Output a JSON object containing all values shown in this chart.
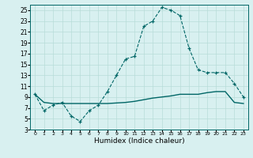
{
  "xlabel": "Humidex (Indice chaleur)",
  "bg_color": "#d8f0f0",
  "grid_color": "#b8dcd8",
  "line_color": "#006666",
  "xlim": [
    -0.5,
    23.5
  ],
  "ylim": [
    3,
    26
  ],
  "yticks": [
    3,
    5,
    7,
    9,
    11,
    13,
    15,
    17,
    19,
    21,
    23,
    25
  ],
  "xticks": [
    0,
    1,
    2,
    3,
    4,
    5,
    6,
    7,
    8,
    9,
    10,
    11,
    12,
    13,
    14,
    15,
    16,
    17,
    18,
    19,
    20,
    21,
    22,
    23
  ],
  "humidex_x": [
    0,
    1,
    2,
    3,
    4,
    5,
    6,
    7,
    8,
    9,
    10,
    11,
    12,
    13,
    14,
    15,
    16,
    17,
    18,
    19,
    20,
    21,
    22,
    23
  ],
  "humidex_y": [
    9.5,
    6.5,
    7.5,
    8.0,
    5.5,
    4.5,
    6.5,
    7.5,
    10.0,
    13.0,
    16.0,
    16.5,
    22.0,
    23.0,
    25.5,
    25.0,
    24.0,
    18.0,
    14.0,
    13.5,
    13.5,
    13.5,
    11.5,
    9.0
  ],
  "reference_x": [
    0,
    1,
    2,
    3,
    4,
    5,
    6,
    7,
    8,
    9,
    10,
    11,
    12,
    13,
    14,
    15,
    16,
    17,
    18,
    19,
    20,
    21,
    22,
    23
  ],
  "reference_y": [
    9.5,
    8.0,
    7.8,
    7.8,
    7.8,
    7.8,
    7.8,
    7.8,
    7.8,
    7.9,
    8.0,
    8.2,
    8.5,
    8.8,
    9.0,
    9.2,
    9.5,
    9.5,
    9.5,
    9.8,
    10.0,
    10.0,
    8.0,
    7.8
  ]
}
